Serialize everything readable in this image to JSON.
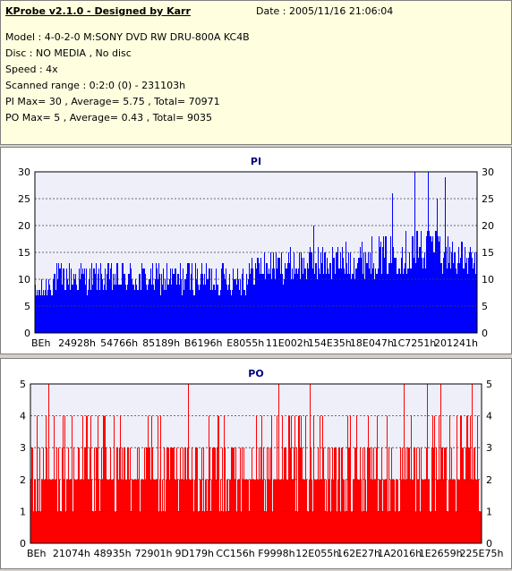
{
  "info": {
    "title": "KProbe v2.1.0 - Designed by Karr",
    "date": "Date : 2005/11/16 21:06:04",
    "lines": [
      "Model : 4-0-2-0 M:SONY    DVD RW DRU-800A  KC4B",
      "Disc : NO MEDIA , No disc",
      "Speed : 4x",
      "Scanned range : 0:2:0 (0) - 231103h",
      "PI Max= 30 , Average= 5.75 , Total= 70971",
      "PO Max= 5 , Average= 0.43 , Total= 9035"
    ]
  },
  "chart_data": [
    {
      "type": "bar",
      "title": "PI",
      "xlabel": "",
      "ylabel": "",
      "ylim": [
        0,
        30
      ],
      "y_ticks": [
        "0",
        "5",
        "10",
        "15",
        "20",
        "25",
        "30"
      ],
      "x_tick_labels": [
        "BEh",
        "24928h",
        "54766h",
        "85189h",
        "B6196h",
        "E8055h",
        "11E002h",
        "154E35h",
        "18E047h",
        "1C7251h",
        "201241h"
      ],
      "grid": true,
      "color": "#0000ff",
      "profile": [
        {
          "x": 0.0,
          "base": 6,
          "amp": 5
        },
        {
          "x": 0.05,
          "base": 9,
          "amp": 6
        },
        {
          "x": 0.15,
          "base": 9,
          "amp": 6
        },
        {
          "x": 0.3,
          "base": 9,
          "amp": 6
        },
        {
          "x": 0.48,
          "base": 9,
          "amp": 7
        },
        {
          "x": 0.5,
          "base": 11,
          "amp": 6
        },
        {
          "x": 0.7,
          "base": 12,
          "amp": 7
        },
        {
          "x": 0.8,
          "base": 13,
          "amp": 8
        },
        {
          "x": 0.9,
          "base": 14,
          "amp": 10
        },
        {
          "x": 1.0,
          "base": 12,
          "amp": 5
        }
      ],
      "peaks": [
        [
          0.63,
          20
        ],
        [
          0.81,
          26
        ],
        [
          0.86,
          30
        ],
        [
          0.89,
          30
        ],
        [
          0.91,
          25
        ],
        [
          0.93,
          29
        ]
      ]
    },
    {
      "type": "bar",
      "title": "PO",
      "xlabel": "",
      "ylabel": "",
      "ylim": [
        0,
        5
      ],
      "y_ticks": [
        "0",
        "1",
        "2",
        "3",
        "4",
        "5"
      ],
      "x_tick_labels": [
        "BEh",
        "21074h",
        "48935h",
        "72901h",
        "9D179h",
        "CC156h",
        "F9998h",
        "12E055h",
        "162E27h",
        "1A2016h",
        "1E2659h",
        "225E75h"
      ],
      "grid": true,
      "color": "#ff0000",
      "peaks": [
        [
          0.04,
          5
        ],
        [
          0.35,
          5
        ],
        [
          0.55,
          5
        ],
        [
          0.62,
          5
        ],
        [
          0.83,
          5
        ],
        [
          0.88,
          5
        ],
        [
          0.91,
          5
        ],
        [
          0.98,
          5
        ]
      ]
    }
  ]
}
